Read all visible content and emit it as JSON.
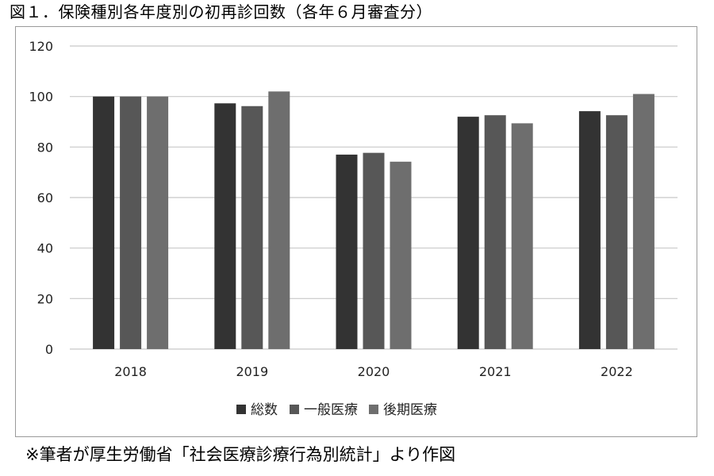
{
  "figure": {
    "title": "図１．保険種別各年度別の初再診回数（各年６月審査分）",
    "source_note": "※筆者が厚生労働省「社会医療診療行為別統計」より作図"
  },
  "chart_data": {
    "type": "bar",
    "categories": [
      "2018",
      "2019",
      "2020",
      "2021",
      "2022"
    ],
    "series": [
      {
        "name": "総数",
        "values": [
          100,
          97.3,
          77,
          92,
          94.2
        ],
        "color": "#333333"
      },
      {
        "name": "一般医療",
        "values": [
          100,
          96.2,
          77.7,
          92.6,
          92.6
        ],
        "color": "#575757"
      },
      {
        "name": "後期医療",
        "values": [
          100,
          102,
          74.2,
          89.4,
          101
        ],
        "color": "#6e6e6e"
      }
    ],
    "ylim": [
      0,
      120
    ],
    "yticks": [
      "0",
      "20",
      "40",
      "60",
      "80",
      "100",
      "120"
    ],
    "grid": true,
    "legend": "bottom",
    "xlabel": "",
    "ylabel": ""
  }
}
